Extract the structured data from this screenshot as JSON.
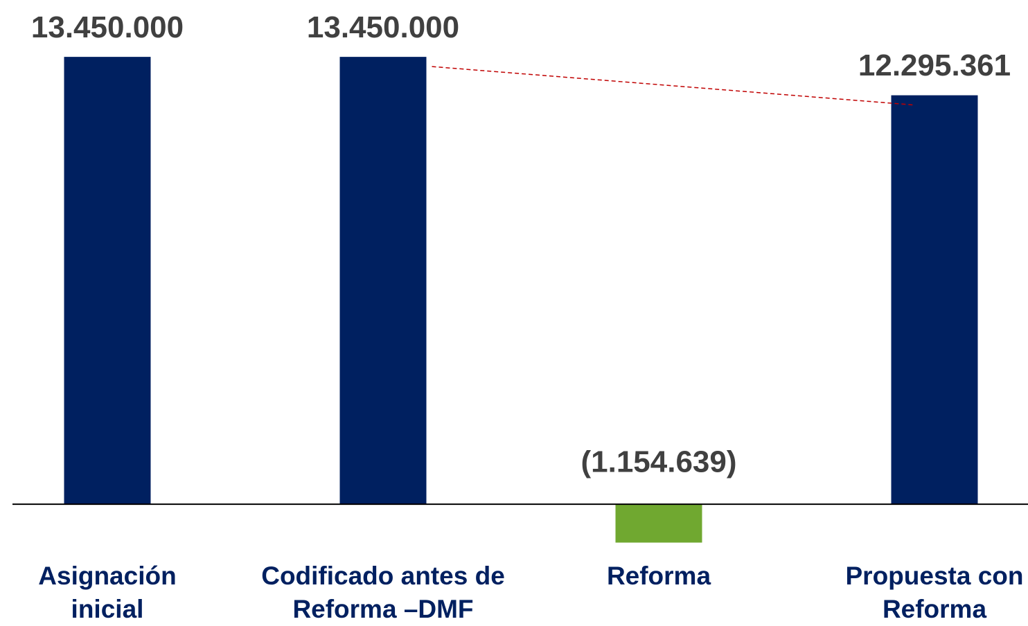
{
  "chart_data": {
    "type": "bar",
    "categories": [
      "Asignación inicial",
      "Codificado antes de Reforma –DMF",
      "Reforma",
      "Propuesta con Reforma"
    ],
    "values": [
      13450000,
      13450000,
      -1154639,
      12295361
    ],
    "value_labels": [
      "13.450.000",
      "13.450.000",
      "(1.154.639)",
      "12.295.361"
    ],
    "colors": [
      "#002060",
      "#002060",
      "#70a830",
      "#002060"
    ],
    "ylim": [
      -3600000,
      15160000
    ]
  }
}
